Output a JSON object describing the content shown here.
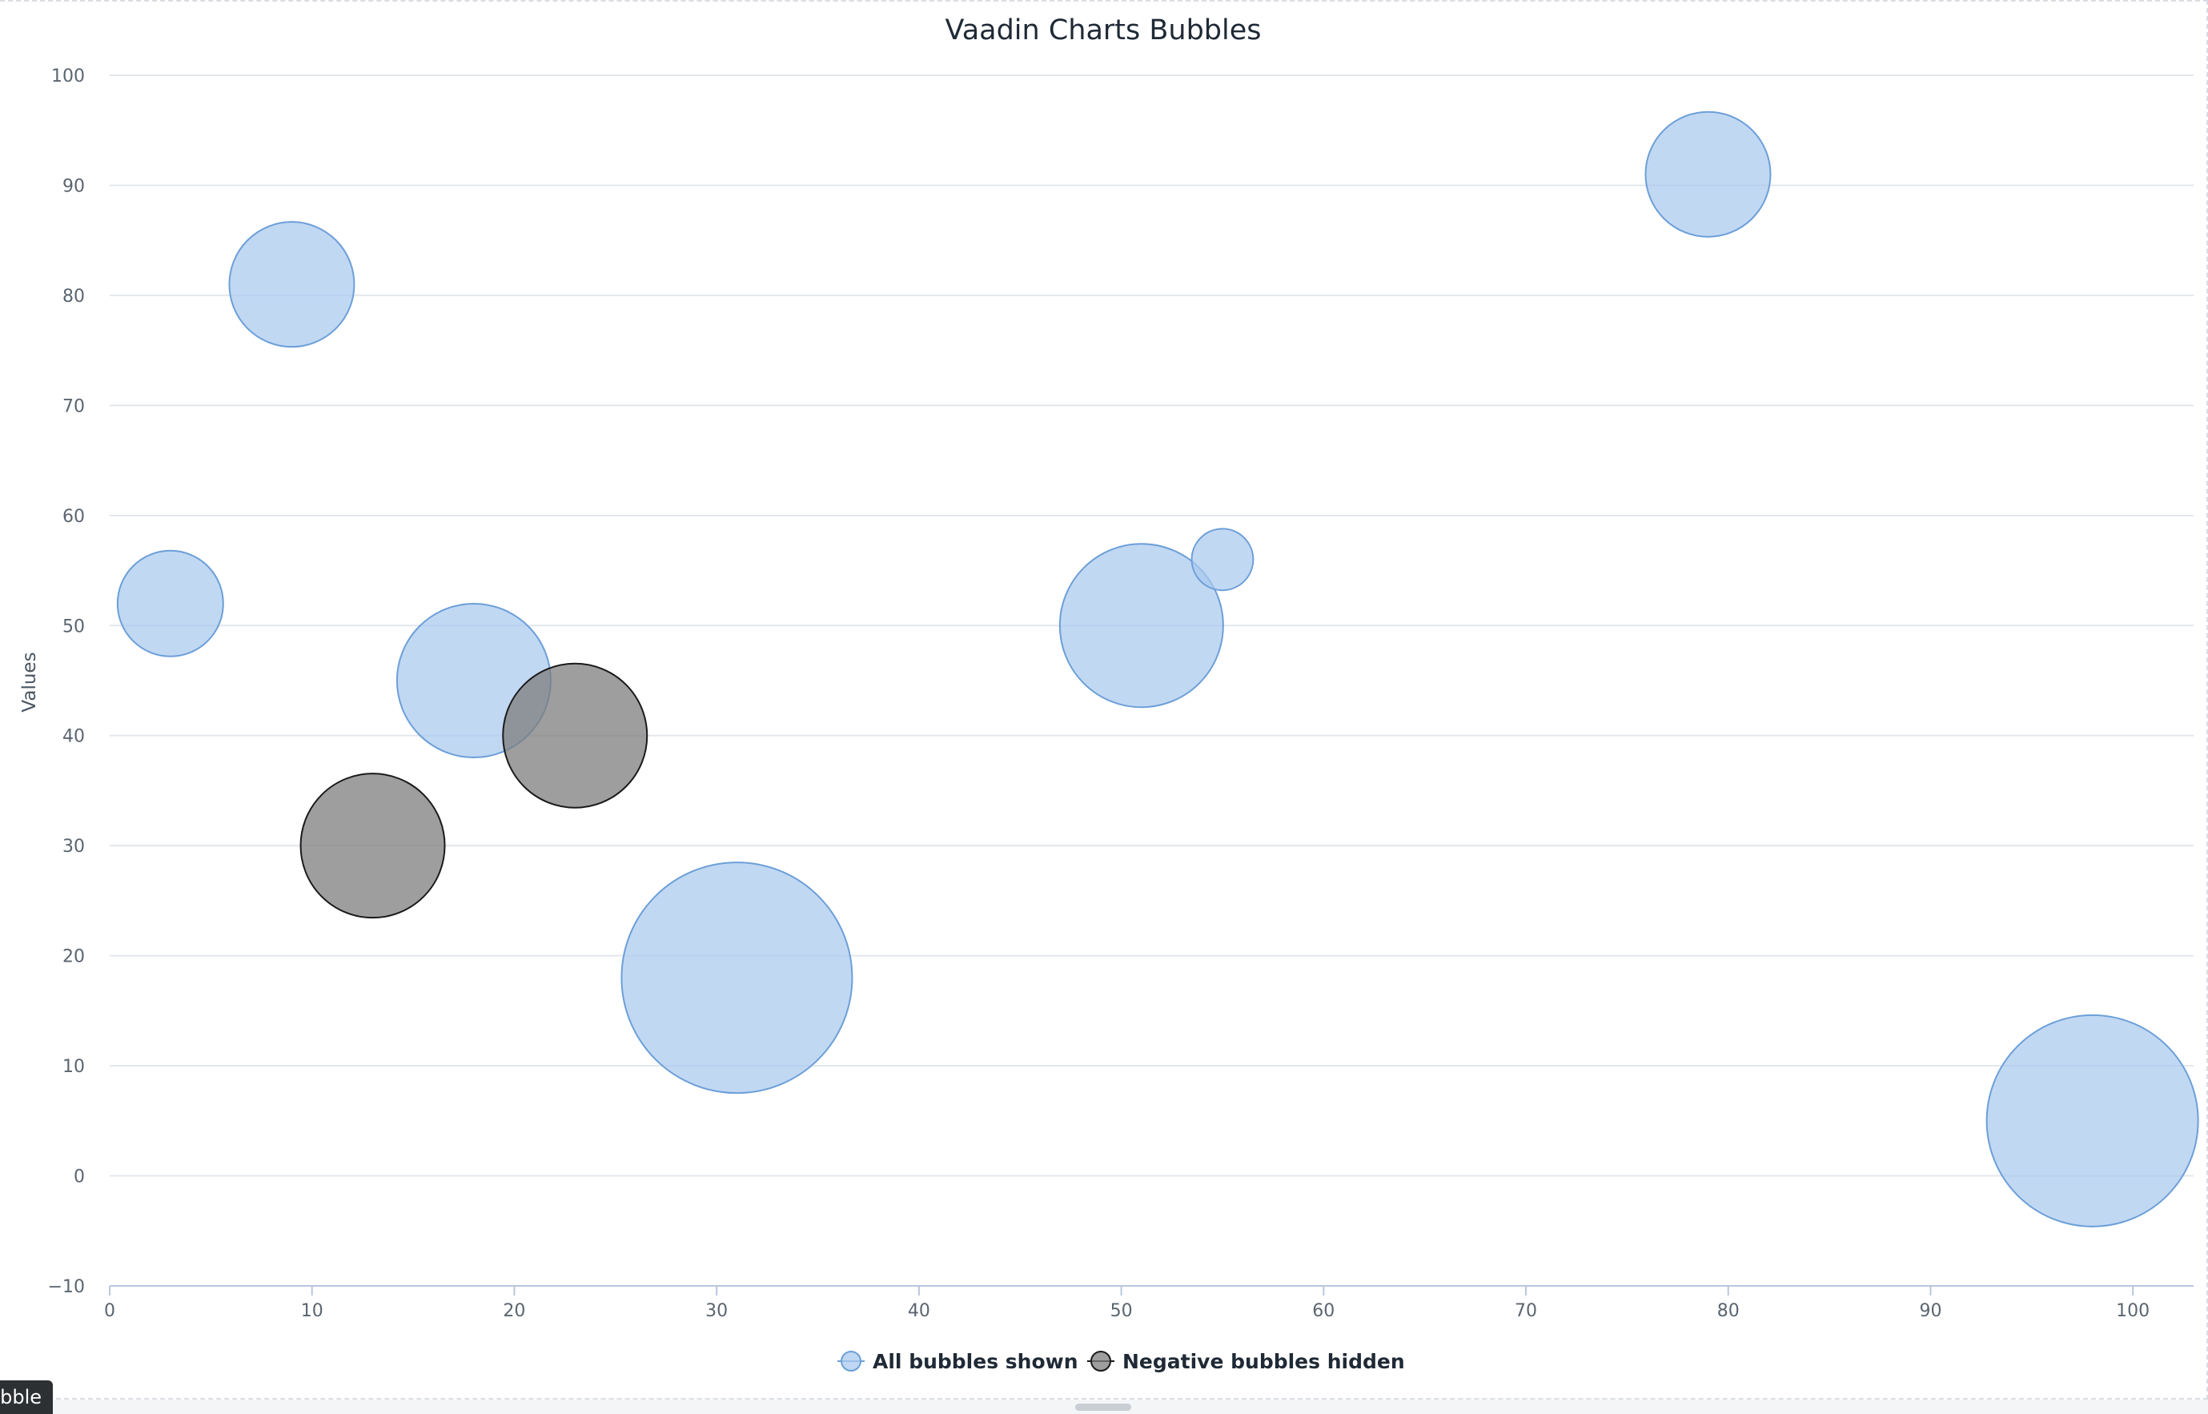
{
  "chart_data": {
    "type": "bubble",
    "title": "Vaadin Charts Bubbles",
    "xlabel": "",
    "ylabel": "Values",
    "xlim": [
      0,
      103
    ],
    "ylim": [
      -10,
      100
    ],
    "xticks": [
      0,
      10,
      20,
      30,
      40,
      50,
      60,
      70,
      80,
      90,
      100
    ],
    "yticks": [
      -10,
      0,
      10,
      20,
      30,
      40,
      50,
      60,
      70,
      80,
      90,
      100
    ],
    "ytick_labels": [
      "−10",
      "0",
      "10",
      "20",
      "30",
      "40",
      "50",
      "60",
      "70",
      "80",
      "90",
      "100"
    ],
    "grid": "horizontal",
    "legend_position": "bottom-center",
    "series": [
      {
        "name": "All bubbles shown",
        "color": "#a9c9ee",
        "stroke": "#6c9fd8",
        "points": [
          {
            "x": 3,
            "y": 52,
            "size": 55
          },
          {
            "x": 9,
            "y": 81,
            "size": 65
          },
          {
            "x": 18,
            "y": 45,
            "size": 80
          },
          {
            "x": 31,
            "y": 18,
            "size": 120
          },
          {
            "x": 51,
            "y": 50,
            "size": 85
          },
          {
            "x": 55,
            "y": 56,
            "size": 32
          },
          {
            "x": 79,
            "y": 91,
            "size": 65
          },
          {
            "x": 98,
            "y": 5,
            "size": 110
          }
        ]
      },
      {
        "name": "Negative bubbles hidden",
        "color": "#7d7d7d",
        "stroke": "#1a1a1a",
        "points": [
          {
            "x": 13,
            "y": 30,
            "size": 75
          },
          {
            "x": 23,
            "y": 40,
            "size": 75
          }
        ]
      }
    ]
  },
  "ui": {
    "tooltip_fragment": "bble"
  }
}
